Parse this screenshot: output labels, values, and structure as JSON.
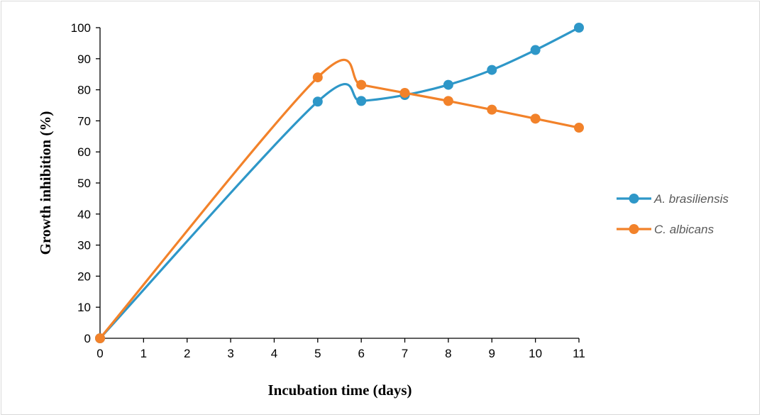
{
  "chart_data": {
    "type": "line",
    "xlabel": "Incubation time (days)",
    "ylabel": "Growth inhibition (%)",
    "xlim": [
      0,
      11
    ],
    "ylim": [
      0,
      100
    ],
    "x_ticks": [
      "0",
      "1",
      "2",
      "3",
      "4",
      "5",
      "6",
      "7",
      "8",
      "9",
      "10",
      "11"
    ],
    "y_ticks": [
      "0",
      "10",
      "20",
      "30",
      "40",
      "50",
      "60",
      "70",
      "80",
      "90",
      "100"
    ],
    "grid": false,
    "smooth": true,
    "legend_position": "right",
    "series": [
      {
        "name": "A. brasiliensis",
        "color": "#2E97C8",
        "x": [
          0,
          5,
          6,
          7,
          8,
          9,
          10,
          11
        ],
        "y": [
          0,
          76.2,
          76.4,
          78.3,
          81.6,
          86.4,
          92.8,
          100
        ]
      },
      {
        "name": "C. albicans",
        "color": "#F2822A",
        "x": [
          0,
          5,
          6,
          7,
          8,
          9,
          10,
          11
        ],
        "y": [
          0,
          84,
          81.6,
          79,
          76.4,
          73.6,
          70.7,
          67.8
        ]
      }
    ]
  }
}
